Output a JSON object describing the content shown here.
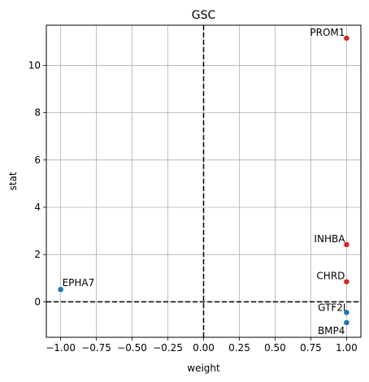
{
  "chart_data": {
    "type": "scatter",
    "title": "GSC",
    "xlabel": "weight",
    "ylabel": "stat",
    "xlim": [
      -1.1,
      1.1
    ],
    "ylim": [
      -1.5,
      11.7
    ],
    "xticks": [
      -1.0,
      -0.75,
      -0.5,
      -0.25,
      0.0,
      0.25,
      0.5,
      0.75,
      1.0
    ],
    "xtick_labels": [
      "−1.00",
      "−0.75",
      "−0.50",
      "−0.25",
      "0.00",
      "0.25",
      "0.50",
      "0.75",
      "1.00"
    ],
    "yticks": [
      0,
      2,
      4,
      6,
      8,
      10
    ],
    "ytick_labels": [
      "0",
      "2",
      "4",
      "6",
      "8",
      "10"
    ],
    "grid": true,
    "reference_lines": {
      "x": 0,
      "y": 0,
      "style": "dashed"
    },
    "colors": {
      "positive": "#d62728",
      "negative": "#1f77b4",
      "grid": "#b0b0b0"
    },
    "points": [
      {
        "label": "PROM1",
        "x": 1.0,
        "y": 11.15,
        "color": "#d62728",
        "label_pos": "upper-left"
      },
      {
        "label": "INHBA",
        "x": 1.0,
        "y": 2.42,
        "color": "#d62728",
        "label_pos": "upper-left"
      },
      {
        "label": "CHRD",
        "x": 1.0,
        "y": 0.85,
        "color": "#d62728",
        "label_pos": "upper-left"
      },
      {
        "label": "GTF2I",
        "x": 1.0,
        "y": -0.45,
        "color": "#1f77b4",
        "label_pos": "left"
      },
      {
        "label": "BMP4",
        "x": 1.0,
        "y": -0.88,
        "color": "#1f77b4",
        "label_pos": "lower-left"
      },
      {
        "label": "EPHA7",
        "x": -1.0,
        "y": 0.52,
        "color": "#1f77b4",
        "label_pos": "upper-right"
      }
    ]
  }
}
